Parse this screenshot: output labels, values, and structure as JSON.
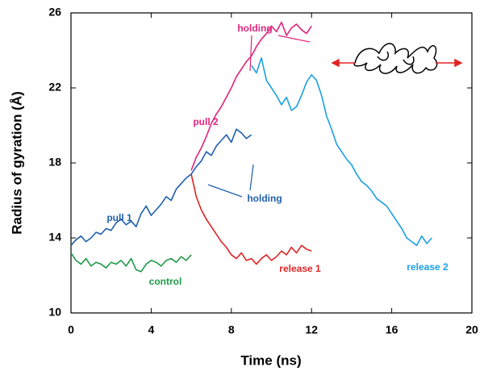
{
  "chart_data": {
    "type": "line",
    "x_label": "Time (ns)",
    "y_label": "Radius of gyration (Å)",
    "xlim": [
      0,
      20
    ],
    "ylim": [
      10,
      26
    ],
    "xticks": [
      0,
      4,
      8,
      12,
      16,
      20
    ],
    "yticks": [
      10,
      14,
      18,
      22,
      26
    ],
    "series": [
      {
        "name": "control",
        "color": "#1f9a48",
        "x": [
          0,
          0.25,
          0.5,
          0.75,
          1,
          1.25,
          1.5,
          1.75,
          2,
          2.25,
          2.5,
          2.75,
          3,
          3.25,
          3.5,
          3.75,
          4,
          4.25,
          4.5,
          4.75,
          5,
          5.25,
          5.5,
          5.75,
          6
        ],
        "values": [
          13.2,
          12.8,
          12.6,
          12.9,
          12.5,
          12.7,
          12.6,
          12.4,
          12.7,
          12.6,
          12.8,
          12.5,
          12.9,
          12.3,
          12.2,
          12.6,
          12.8,
          12.7,
          12.5,
          12.8,
          12.9,
          12.7,
          13.0,
          12.8,
          13.1
        ]
      },
      {
        "name": "pull 1",
        "color": "#1f5fb0",
        "x": [
          0,
          0.25,
          0.5,
          0.75,
          1,
          1.25,
          1.5,
          1.75,
          2,
          2.25,
          2.5,
          2.75,
          3,
          3.25,
          3.5,
          3.75,
          4,
          4.25,
          4.5,
          4.75,
          5,
          5.25,
          5.5,
          5.75,
          6,
          6.25,
          6.5,
          6.75,
          7,
          7.25,
          7.5,
          7.75,
          8,
          8.25,
          8.5,
          8.75,
          9
        ],
        "values": [
          13.6,
          13.9,
          14.1,
          13.8,
          14.0,
          14.3,
          14.2,
          14.5,
          14.4,
          14.8,
          15.0,
          14.7,
          14.9,
          14.6,
          15.3,
          15.7,
          15.2,
          15.5,
          15.8,
          16.2,
          16.0,
          16.6,
          16.9,
          17.2,
          17.4,
          17.8,
          18.1,
          18.6,
          18.4,
          18.9,
          19.2,
          19.5,
          19.1,
          19.8,
          19.6,
          19.3,
          19.5
        ]
      },
      {
        "name": "pull 2",
        "color": "#e0247c",
        "x": [
          6,
          6.25,
          6.5,
          6.75,
          7,
          7.25,
          7.5,
          7.75,
          8,
          8.25,
          8.5,
          8.75,
          9,
          9.25,
          9.5,
          9.75,
          10,
          10.25,
          10.5,
          10.75,
          11,
          11.25,
          11.5,
          11.75,
          12
        ],
        "values": [
          17.6,
          18.3,
          18.8,
          19.4,
          20.1,
          20.6,
          21.0,
          21.5,
          22.0,
          22.6,
          23.0,
          23.4,
          23.7,
          24.2,
          24.6,
          24.9,
          25.3,
          25.0,
          25.5,
          24.8,
          25.2,
          25.4,
          25.1,
          24.9,
          25.3
        ]
      },
      {
        "name": "release 1",
        "color": "#e02424",
        "x": [
          6,
          6.25,
          6.5,
          6.75,
          7,
          7.25,
          7.5,
          7.75,
          8,
          8.25,
          8.5,
          8.75,
          9,
          9.25,
          9.5,
          9.75,
          10,
          10.25,
          10.5,
          10.75,
          11,
          11.25,
          11.5,
          11.75,
          12
        ],
        "values": [
          17.4,
          16.2,
          15.5,
          15.0,
          14.6,
          14.2,
          13.8,
          13.5,
          13.1,
          12.9,
          13.2,
          12.8,
          12.9,
          12.6,
          12.9,
          13.1,
          12.8,
          13.0,
          13.3,
          13.1,
          13.5,
          13.2,
          13.6,
          13.4,
          13.3
        ]
      },
      {
        "name": "release 2",
        "color": "#1aa0e0",
        "x": [
          9,
          9.25,
          9.5,
          9.75,
          10,
          10.25,
          10.5,
          10.75,
          11,
          11.25,
          11.5,
          11.75,
          12,
          12.25,
          12.5,
          12.75,
          13,
          13.25,
          13.5,
          13.75,
          14,
          14.25,
          14.5,
          14.75,
          15,
          15.25,
          15.5,
          15.75,
          16,
          16.25,
          16.5,
          16.75,
          17,
          17.25,
          17.5,
          17.75,
          18
        ],
        "values": [
          23.2,
          22.8,
          23.6,
          22.4,
          22.0,
          21.6,
          21.1,
          21.5,
          20.8,
          21.0,
          21.6,
          22.3,
          22.7,
          22.4,
          21.6,
          20.5,
          19.8,
          19.0,
          18.6,
          18.2,
          17.9,
          17.4,
          17.0,
          16.8,
          16.5,
          16.1,
          15.9,
          15.7,
          15.3,
          14.9,
          14.5,
          14.0,
          13.8,
          13.6,
          14.1,
          13.7,
          14.0
        ]
      }
    ],
    "annotations": [
      "holding",
      "holding"
    ]
  }
}
